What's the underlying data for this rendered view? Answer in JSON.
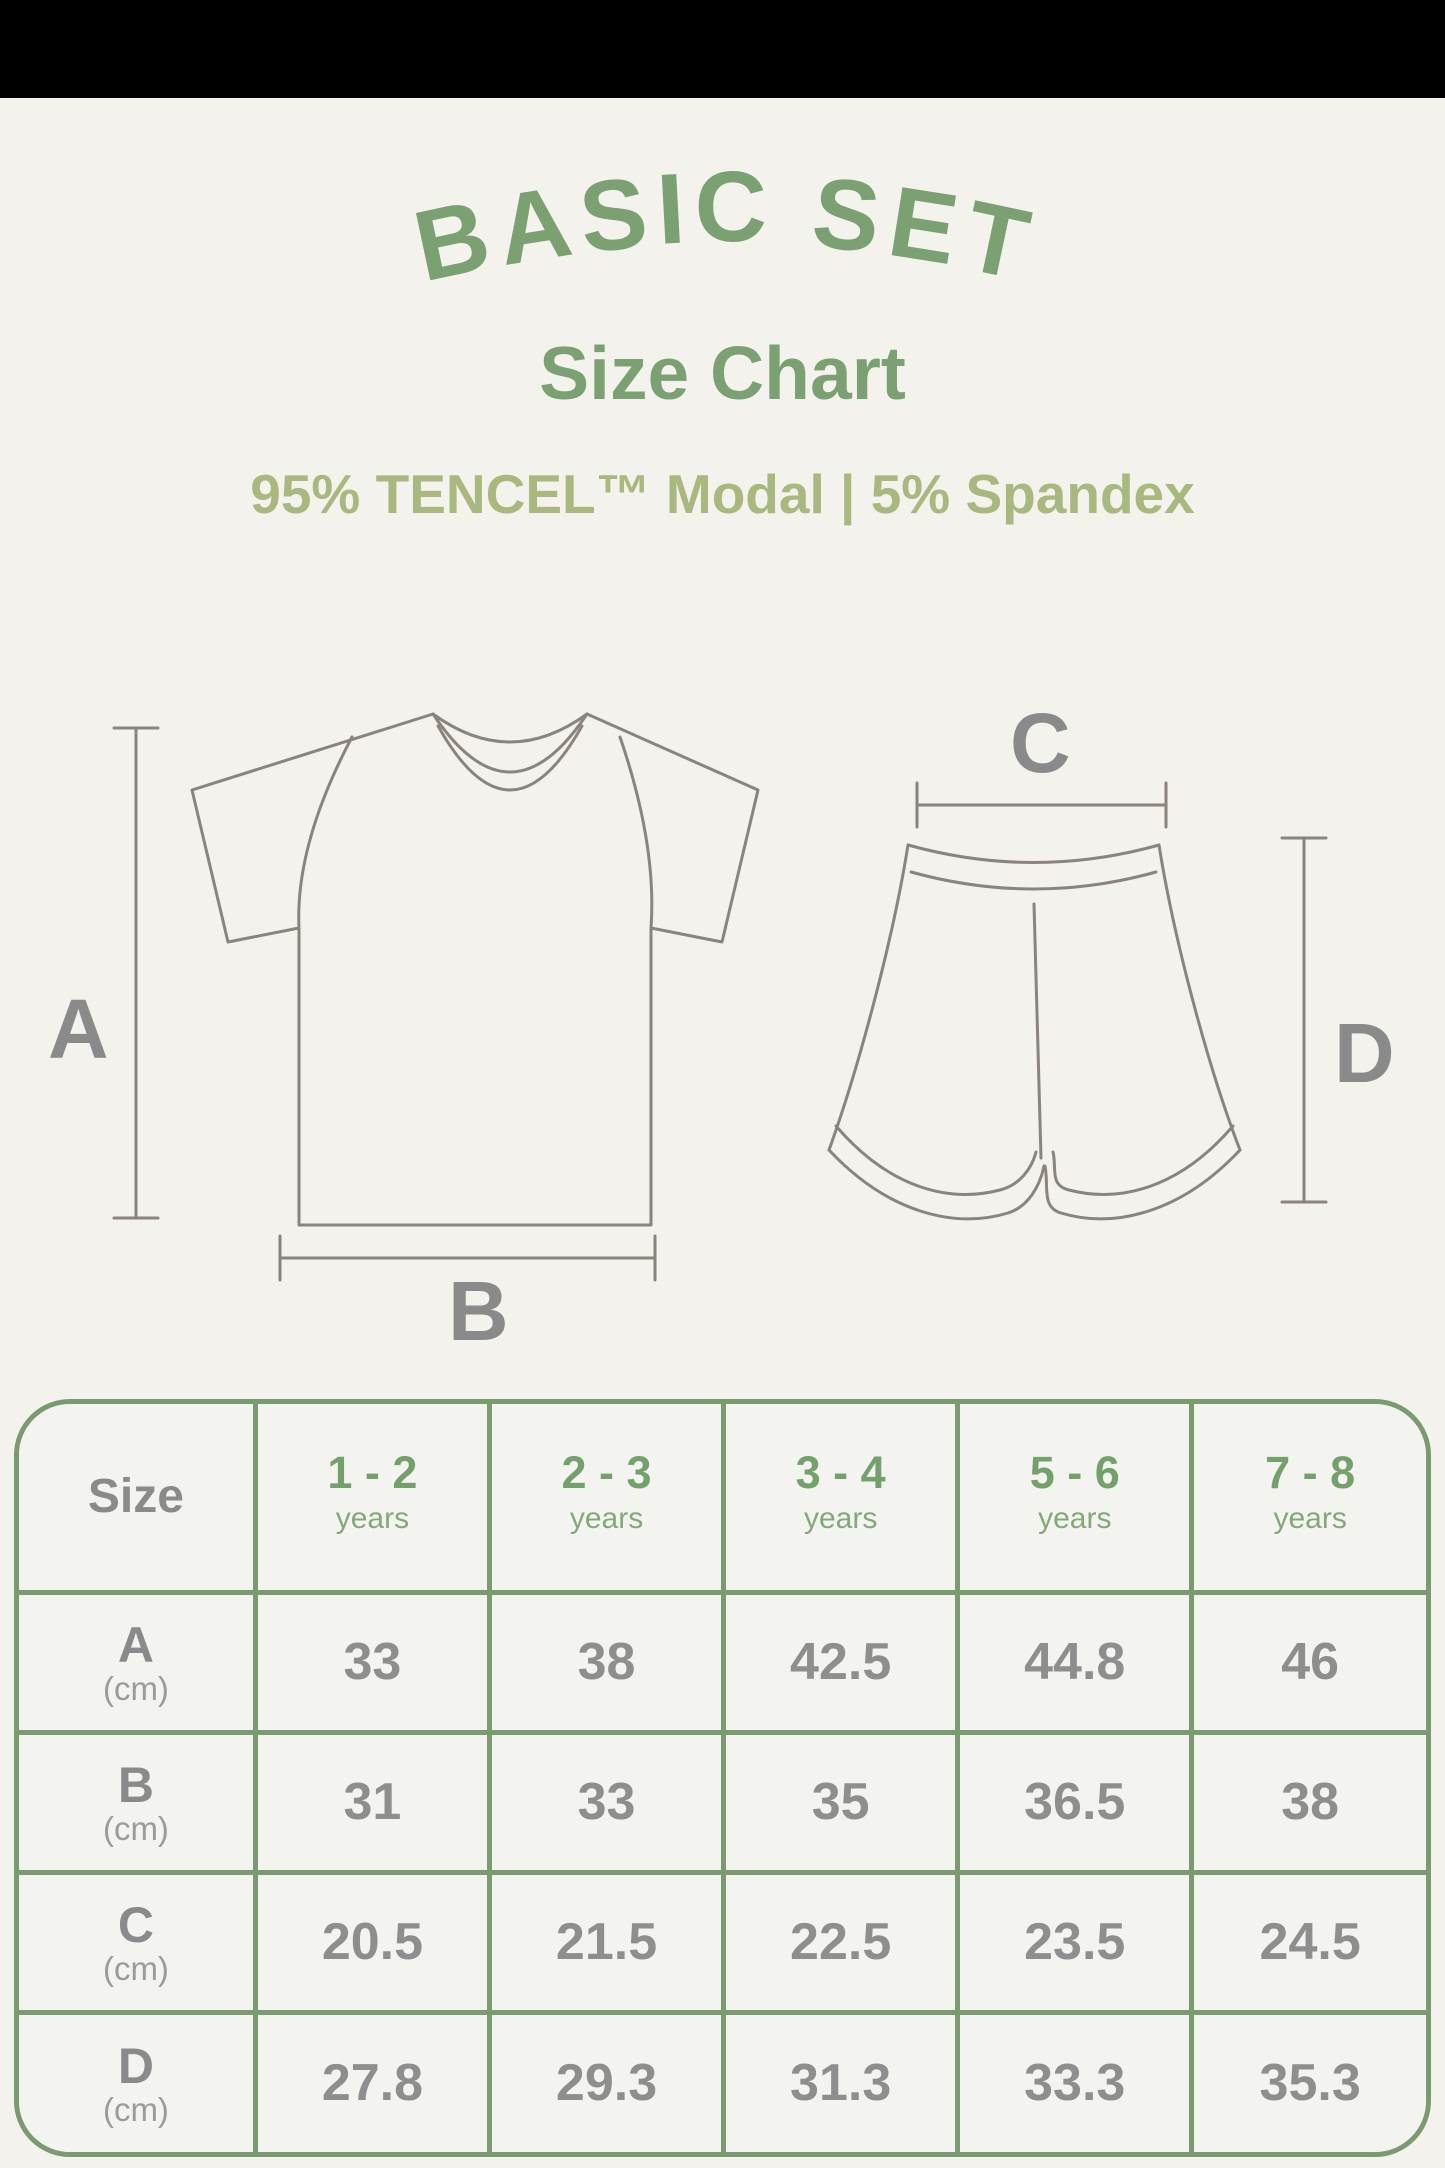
{
  "colors": {
    "background": "#f4f2ec",
    "title_green": "#7ba173",
    "sage_green": "#a9b87e",
    "table_border_green": "#7a9b70",
    "cell_background": "#f3f3f0",
    "text_gray": "#8e8e8e",
    "diagram_stroke": "#8b837e"
  },
  "title": {
    "text": "BASIC SET"
  },
  "subtitle": "Size Chart",
  "composition": "95% TENCEL™ Modal | 5% Spandex",
  "diagram": {
    "shirt_height_label": "A",
    "shirt_width_label": "B",
    "shorts_width_label": "C",
    "shorts_height_label": "D"
  },
  "size_table": {
    "header_label": "Size",
    "columns": [
      {
        "range": "1 - 2",
        "unit": "years"
      },
      {
        "range": "2 - 3",
        "unit": "years"
      },
      {
        "range": "3 - 4",
        "unit": "years"
      },
      {
        "range": "5 - 6",
        "unit": "years"
      },
      {
        "range": "7 - 8",
        "unit": "years"
      }
    ],
    "rows": [
      {
        "label": "A",
        "unit": "(cm)",
        "values": [
          "33",
          "38",
          "42.5",
          "44.8",
          "46"
        ]
      },
      {
        "label": "B",
        "unit": "(cm)",
        "values": [
          "31",
          "33",
          "35",
          "36.5",
          "38"
        ]
      },
      {
        "label": "C",
        "unit": "(cm)",
        "values": [
          "20.5",
          "21.5",
          "22.5",
          "23.5",
          "24.5"
        ]
      },
      {
        "label": "D",
        "unit": "(cm)",
        "values": [
          "27.8",
          "29.3",
          "31.3",
          "33.3",
          "35.3"
        ]
      }
    ]
  }
}
